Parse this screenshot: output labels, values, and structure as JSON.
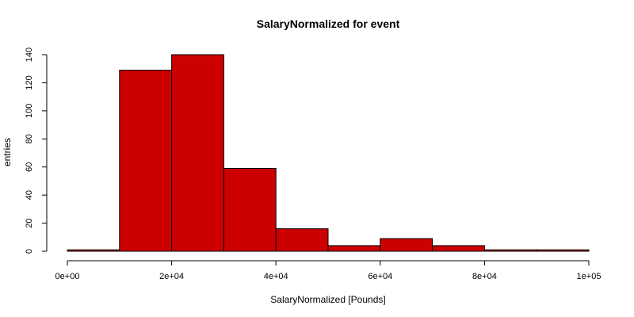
{
  "chart_data": {
    "type": "bar",
    "title": "SalaryNormalized for event",
    "xlabel": "SalaryNormalized [Pounds]",
    "ylabel": "entries",
    "bins": [
      {
        "x0": 0,
        "x1": 10000,
        "value": 1
      },
      {
        "x0": 10000,
        "x1": 20000,
        "value": 129
      },
      {
        "x0": 20000,
        "x1": 30000,
        "value": 140
      },
      {
        "x0": 30000,
        "x1": 40000,
        "value": 59
      },
      {
        "x0": 40000,
        "x1": 50000,
        "value": 16
      },
      {
        "x0": 50000,
        "x1": 60000,
        "value": 4
      },
      {
        "x0": 60000,
        "x1": 70000,
        "value": 9
      },
      {
        "x0": 70000,
        "x1": 80000,
        "value": 4
      },
      {
        "x0": 80000,
        "x1": 90000,
        "value": 1
      },
      {
        "x0": 90000,
        "x1": 100000,
        "value": 1
      }
    ],
    "xlim": [
      0,
      100000
    ],
    "ylim": [
      0,
      140
    ],
    "x_ticks": [
      {
        "value": 0,
        "label": "0e+00"
      },
      {
        "value": 20000,
        "label": "2e+04"
      },
      {
        "value": 40000,
        "label": "4e+04"
      },
      {
        "value": 60000,
        "label": "6e+04"
      },
      {
        "value": 80000,
        "label": "8e+04"
      },
      {
        "value": 100000,
        "label": "1e+05"
      }
    ],
    "y_ticks": [
      {
        "value": 0,
        "label": "0"
      },
      {
        "value": 20,
        "label": "20"
      },
      {
        "value": 40,
        "label": "40"
      },
      {
        "value": 60,
        "label": "60"
      },
      {
        "value": 80,
        "label": "80"
      },
      {
        "value": 100,
        "label": "100"
      },
      {
        "value": 120,
        "label": "120"
      },
      {
        "value": 140,
        "label": "140"
      }
    ],
    "grid": false,
    "bar_color": "#cc0000",
    "edge_color": "#000000"
  }
}
